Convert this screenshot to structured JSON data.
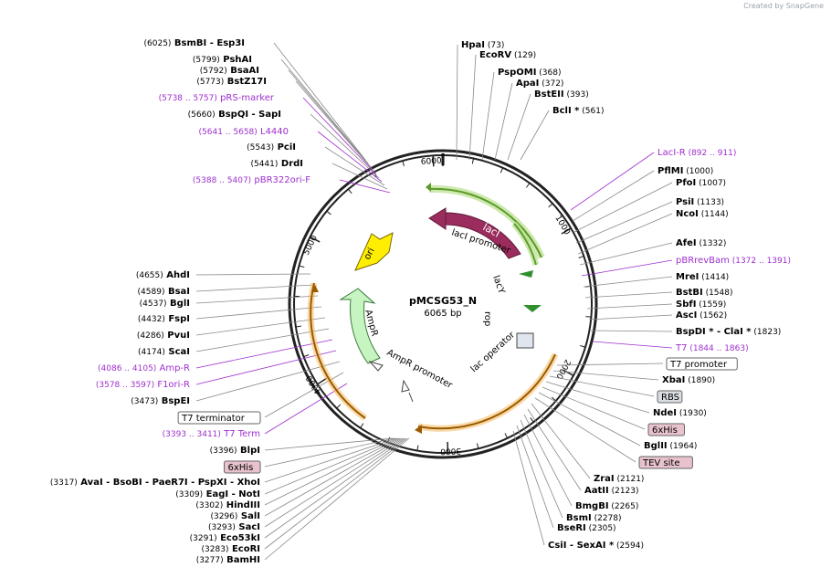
{
  "header": {
    "created_by": "Created by",
    "brand_name": "SnapGene"
  },
  "plasmid": {
    "name": "pMCSG53_N",
    "size": "6065 bp"
  },
  "ticks": [
    "1000",
    "2000",
    "3000",
    "4000",
    "5000",
    "6000"
  ],
  "features": {
    "lacI": "lacI",
    "lacI_promoter": "lacI promoter",
    "rop": "rop",
    "ori": "ori",
    "AmpR": "AmpR",
    "AmpR_promoter": "AmpR promoter",
    "lac_operator": "lac operator",
    "lacY": "lacY"
  },
  "sites_left": [
    {
      "coord": "(6025)",
      "name": "BsmBI",
      "extra": "- Esp3I"
    },
    {
      "coord": "(5799)",
      "name": "PshAI"
    },
    {
      "coord": "(5792)",
      "name": "BsaAI"
    },
    {
      "coord": "(5773)",
      "name": "BstZ17I"
    },
    {
      "coord": "(5738 .. 5757)",
      "name": "pRS-marker",
      "primer": true
    },
    {
      "coord": "(5660)",
      "name": "BspQI",
      "extra": "- SapI"
    },
    {
      "coord": "(5641 .. 5658)",
      "name": "L4440",
      "primer": true
    },
    {
      "coord": "(5543)",
      "name": "PciI"
    },
    {
      "coord": "(5441)",
      "name": "DrdI"
    },
    {
      "coord": "(5388 .. 5407)",
      "name": "pBR322ori-F",
      "primer": true
    },
    {
      "coord": "(4655)",
      "name": "AhdI"
    },
    {
      "coord": "(4589)",
      "name": "BsaI"
    },
    {
      "coord": "(4537)",
      "name": "BglI"
    },
    {
      "coord": "(4432)",
      "name": "FspI"
    },
    {
      "coord": "(4286)",
      "name": "PvuI"
    },
    {
      "coord": "(4174)",
      "name": "ScaI"
    },
    {
      "coord": "(4086 .. 4105)",
      "name": "Amp-R",
      "primer": true
    },
    {
      "coord": "(3578 .. 3597)",
      "name": "F1ori-R",
      "primer": true
    },
    {
      "coord": "(3473)",
      "name": "BspEI"
    },
    {
      "name": "T7 terminator",
      "box": "plain"
    },
    {
      "coord": "(3393 .. 3411)",
      "name": "T7 Term",
      "primer": true
    },
    {
      "coord": "(3396)",
      "name": "BlpI"
    },
    {
      "name": "6xHis",
      "box": "pink"
    },
    {
      "coord": "(3317)",
      "name": "AvaI",
      "extra": "- BsoBI - PaeR7I - PspXI - XhoI"
    },
    {
      "coord": "(3309)",
      "name": "EagI",
      "extra": "- NotI"
    },
    {
      "coord": "(3302)",
      "name": "HindIII"
    },
    {
      "coord": "(3296)",
      "name": "SalI"
    },
    {
      "coord": "(3293)",
      "name": "SacI"
    },
    {
      "coord": "(3291)",
      "name": "Eco53kI"
    },
    {
      "coord": "(3283)",
      "name": "EcoRI"
    },
    {
      "coord": "(3277)",
      "name": "BamHI"
    }
  ],
  "sites_right": [
    {
      "coord": "(73)",
      "name": "HpaI"
    },
    {
      "coord": "(129)",
      "name": "EcoRV"
    },
    {
      "coord": "(368)",
      "name": "PspOMI"
    },
    {
      "coord": "(372)",
      "name": "ApaI"
    },
    {
      "coord": "(393)",
      "name": "BstEII"
    },
    {
      "coord": "(561)",
      "name": "BclI *"
    },
    {
      "coord": "(892 .. 911)",
      "name": "LacI-R",
      "primer": true
    },
    {
      "coord": "(1000)",
      "name": "PflMI"
    },
    {
      "coord": "(1007)",
      "name": "PfoI"
    },
    {
      "coord": "(1133)",
      "name": "PsiI"
    },
    {
      "coord": "(1144)",
      "name": "NcoI"
    },
    {
      "coord": "(1332)",
      "name": "AfeI"
    },
    {
      "coord": "(1372 .. 1391)",
      "name": "pBRrevBam",
      "primer": true
    },
    {
      "coord": "(1414)",
      "name": "MreI"
    },
    {
      "coord": "(1548)",
      "name": "BstBI"
    },
    {
      "coord": "(1559)",
      "name": "SbfI"
    },
    {
      "coord": "(1562)",
      "name": "AscI"
    },
    {
      "coord": "(1823)",
      "name": "BspDI *",
      "extra": "- ClaI *"
    },
    {
      "coord": "(1844 .. 1863)",
      "name": "T7",
      "primer": true
    },
    {
      "name": "T7 promoter",
      "box": "plain"
    },
    {
      "coord": "(1890)",
      "name": "XbaI"
    },
    {
      "name": "RBS",
      "box": "gray"
    },
    {
      "coord": "(1930)",
      "name": "NdeI"
    },
    {
      "name": "6xHis",
      "box": "pink"
    },
    {
      "coord": "(1964)",
      "name": "BglII"
    },
    {
      "name": "TEV site",
      "box": "pink"
    },
    {
      "coord": "(2121)",
      "name": "ZraI"
    },
    {
      "coord": "(2123)",
      "name": "AatII"
    },
    {
      "coord": "(2265)",
      "name": "BmgBI"
    },
    {
      "coord": "(2278)",
      "name": "BsmI"
    },
    {
      "coord": "(2305)",
      "name": "BseRI"
    },
    {
      "coord": "(2594)",
      "name": "CsiI",
      "extra": "- SexAI *"
    }
  ],
  "colors": {
    "lacI": "#9b2d5e",
    "lacI_promoter": "#7fc241",
    "rop": "#6aa84f",
    "ori": "#ffee00",
    "AmpR": "#c6f5c2",
    "yellow_arc": "#f5c06a",
    "green_arc": "#b8e08a",
    "primer": "#9e2fce",
    "box_pink": "#e8c2cc",
    "box_gray": "#d9dde2",
    "backbone": "#222222"
  }
}
